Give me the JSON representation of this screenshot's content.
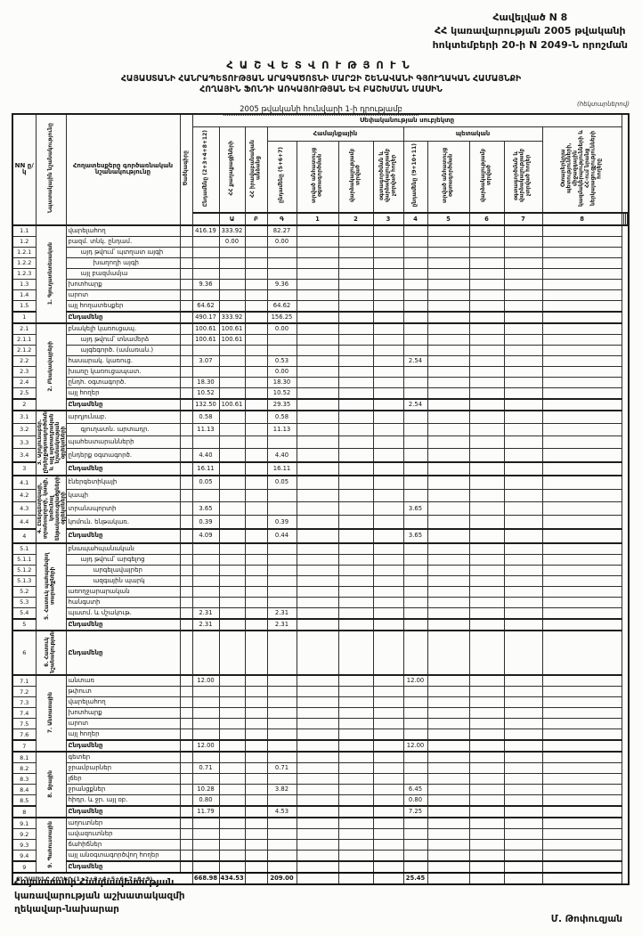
{
  "page": {
    "appendix": [
      "Հավելված N 8",
      "ՀՀ կառավարության 2005 թվականի",
      "հոկտեմբերի 20-ի N 2049-Ն որոշման"
    ],
    "title1": "ՀԱՇՎԵՏՎՈՒԹՅՈՒՆ",
    "title2": "ՀԱՅԱՍՏԱՆԻ ՀԱՆՐԱՊԵՏՈՒԹՅԱՆ ԱՐԱԳԱԾՈՏՆԻ ՄԱՐԶԻ ՇԵՆԱՎԱՆԻ ԳՅՈՒՂԱԿԱՆ ՀԱՄԱՅՆՔԻ",
    "title3": "ՀՈՂԱՅԻՆ ՖՈՆԴԻ ԱՌԿԱՅՈՒԹՅԱՆ ԵՎ ԲԱՇԽՄԱՆ ՄԱՍԻՆ",
    "title4": "2005 թվականի հունվարի 1-ի դրությամբ",
    "units_note": "(հեկտարներով)",
    "footer_lines": [
      "Հայաստանի Հանրապետության",
      "կառավարության աշխատակազմի",
      "ղեկավար-նախարար"
    ],
    "signature": "Մ. Թոփուզյան"
  },
  "table": {
    "header": {
      "nn": "NN ը/կ",
      "purpose": "Նպատակային նշանակությունը",
      "land_types": "Հողատեսքերը գործառնական նշանակությունը",
      "code": "Ծածկագիրը",
      "subject": "Սեփականության սուբյեկտը",
      "community": "Համայնքային",
      "state": "պետական",
      "c1": "Ընդամենը (2+3+4+8+12)",
      "c2": "ՀՀ քաղաքացիների",
      "c3": "ՀՀ իրավաբանական անձանց",
      "c4": "ընդամենը (5+6+7)",
      "c5": "տրված անհատույց օգտագործման",
      "c6": "վարձակալությամբ տրված",
      "c7": "օգտագործման և վարձակալությամբ չտրված հողեր",
      "c8": "ընդամենը (9+10+11)",
      "c9": "տրված անհատույց օգտագործման",
      "c10": "վարձակալությամբ տրված",
      "c11": "օգտագործման և վարձակալությամբ չտրված հողեր",
      "c12": "Օտարերկրյա պետությունների, միջազգային կազմակերպությունների և ՀՀ-ում նրանց ներկայացուցչությունների հողերը"
    },
    "col_numbers": [
      "",
      "Ա",
      "Բ",
      "Գ",
      "1",
      "2",
      "3",
      "4",
      "5",
      "6",
      "7",
      "8",
      "9",
      "10",
      "11",
      "12"
    ],
    "rows": [
      {
        "no": "1.1",
        "section": {
          "label": "1. Գյուղատնտեսական",
          "span": 9
        },
        "label": "վարելահող",
        "v": {
          "1": "416.19",
          "2": "333.92",
          "4": "82.27"
        }
      },
      {
        "no": "1.2",
        "label": "բազմ. տնկ. ընդամ.",
        "v": {
          "2": "0.00",
          "4": "0.00"
        }
      },
      {
        "no": "1.2.1",
        "indent": 1,
        "label": "այդ թվում՝ պտղատ այգի"
      },
      {
        "no": "1.2.2",
        "indent": 2,
        "label": "խաղողի այգի"
      },
      {
        "no": "1.2.3",
        "indent": 1,
        "label": "այլ բազմամյա"
      },
      {
        "no": "1.3",
        "label": "խոտհարք",
        "v": {
          "1": "9.36",
          "4": "9.36"
        }
      },
      {
        "no": "1.4",
        "label": "արոտ"
      },
      {
        "no": "1.5",
        "label": "այլ հողատեսքեր",
        "v": {
          "1": "64.62",
          "4": "64.62"
        }
      },
      {
        "no": "1",
        "total": true,
        "label": "Ընդամենը",
        "v": {
          "1": "490.17",
          "2": "333.92",
          "4": "156.25"
        }
      },
      {
        "no": "2.1",
        "section": {
          "label": "2. Բնակավայրերի",
          "span": 8
        },
        "label": "բնակելի կառուցապ.",
        "v": {
          "1": "100.61",
          "2": "100.61",
          "4": "0.00"
        }
      },
      {
        "no": "2.1.1",
        "indent": 1,
        "label": "այդ թվում՝ տնամերձ",
        "v": {
          "1": "100.61",
          "2": "100.61"
        }
      },
      {
        "no": "2.1.2",
        "indent": 1,
        "label": "այգեգործ. (ամառան.)"
      },
      {
        "no": "2.2",
        "label": "հասարակ. կառուց.",
        "v": {
          "1": "3.07",
          "4": "0.53",
          "8": "2.54"
        }
      },
      {
        "no": "2.3",
        "label": "խառը կառուցապատ.",
        "v": {
          "4": "0.00"
        }
      },
      {
        "no": "2.4",
        "label": "ընդհ. օգտագործ.",
        "v": {
          "1": "18.30",
          "4": "18.30"
        }
      },
      {
        "no": "2.5",
        "label": "այլ հողեր",
        "v": {
          "1": "10.52",
          "4": "10.52"
        }
      },
      {
        "no": "2",
        "total": true,
        "label": "Ընդամենը",
        "v": {
          "1": "132.50",
          "2": "100.61",
          "4": "29.35",
          "8": "2.54"
        }
      },
      {
        "no": "3.1",
        "section": {
          "label": "3. Արդյունաբեր. ընդերքօգտագործման և այլ արտադրական նշանակության օբյեկտների",
          "span": 5
        },
        "label": "արդյունաբ.",
        "v": {
          "1": "0.58",
          "4": "0.58"
        }
      },
      {
        "no": "3.2",
        "indent": 1,
        "label": "գյուղատն. արտադր.",
        "v": {
          "1": "11.13",
          "4": "11.13"
        }
      },
      {
        "no": "3.3",
        "label": "պահեստարանների"
      },
      {
        "no": "3.4",
        "label": "ընդերք օգտագործ.",
        "v": {
          "1": "4.40",
          "4": "4.40"
        }
      },
      {
        "no": "3",
        "total": true,
        "label": "Ընդամենը",
        "v": {
          "1": "16.11",
          "4": "16.11"
        }
      },
      {
        "no": "4.1",
        "section": {
          "label": "4. Էներգետիկայի, տրանսպորտի, կապի, կոմունալ ենթակառուցվածքների օբյեկտների",
          "span": 5
        },
        "label": "էներգետիկայի",
        "v": {
          "1": "0.05",
          "4": "0.05"
        }
      },
      {
        "no": "4.2",
        "label": "կապի"
      },
      {
        "no": "4.3",
        "label": "տրանսպորտի",
        "v": {
          "1": "3.65",
          "8": "3.65"
        }
      },
      {
        "no": "4.4",
        "label": "կոմուն. ենթակառ.",
        "v": {
          "1": "0.39",
          "4": "0.39"
        }
      },
      {
        "no": "4",
        "total": true,
        "label": "Ընդամենը",
        "v": {
          "1": "4.09",
          "4": "0.44",
          "8": "3.65"
        }
      },
      {
        "no": "5.1",
        "section": {
          "label": "5. Հատուկ պահպանվող տարածքների",
          "span": 8
        },
        "label": "բնապահպանական"
      },
      {
        "no": "5.1.1",
        "indent": 1,
        "label": "այդ թվում՝ արգելոց"
      },
      {
        "no": "5.1.2",
        "indent": 2,
        "label": "արգելավայրեր"
      },
      {
        "no": "5.1.3",
        "indent": 2,
        "label": "ազգային պարկ"
      },
      {
        "no": "5.2",
        "label": "առողջարարական"
      },
      {
        "no": "5.3",
        "label": "հանգստի"
      },
      {
        "no": "5.4",
        "label": "պատմ. և մշակութ.",
        "v": {
          "1": "2.31",
          "4": "2.31"
        }
      },
      {
        "no": "5",
        "total": true,
        "label": "Ընդամենը",
        "v": {
          "1": "2.31",
          "4": "2.31"
        }
      },
      {
        "no": "6",
        "tall": true,
        "total": true,
        "section": {
          "label": "6. Հատուկ նշանակության",
          "span": 1
        },
        "label": "Ընդամենը"
      },
      {
        "no": "7.1",
        "section": {
          "label": "7. Անտառային",
          "span": 7
        },
        "label": "անտառ",
        "v": {
          "1": "12.00",
          "8": "12.00"
        }
      },
      {
        "no": "7.2",
        "label": "թփուտ"
      },
      {
        "no": "7.3",
        "label": "վարելահող"
      },
      {
        "no": "7.4",
        "label": "խոտհարք"
      },
      {
        "no": "7.5",
        "label": "արոտ"
      },
      {
        "no": "7.6",
        "label": "այլ հողեր"
      },
      {
        "no": "7",
        "total": true,
        "label": "Ընդամենը",
        "v": {
          "1": "12.00",
          "8": "12.00"
        }
      },
      {
        "no": "8.1",
        "section": {
          "label": "8. Ջրային",
          "span": 6
        },
        "label": "գետեր"
      },
      {
        "no": "8.2",
        "label": "ջրամբարներ",
        "v": {
          "1": "0.71",
          "4": "0.71"
        }
      },
      {
        "no": "8.3",
        "label": "լճեր"
      },
      {
        "no": "8.4",
        "label": "ջրանցքներ",
        "v": {
          "1": "10.28",
          "4": "3.82",
          "8": "6.45"
        }
      },
      {
        "no": "8.5",
        "label": "հիդր. և ջր. այլ օբ.",
        "v": {
          "1": "0.80",
          "8": "0.80"
        }
      },
      {
        "no": "8",
        "total": true,
        "label": "Ընդամենը",
        "v": {
          "1": "11.79",
          "4": "4.53",
          "8": "7.25"
        }
      },
      {
        "no": "9.1",
        "section": {
          "label": "9. Պահուստային",
          "span": 5
        },
        "label": "աղուտներ"
      },
      {
        "no": "9.2",
        "label": "ավազուտներ"
      },
      {
        "no": "9.3",
        "label": "ճահիճներ"
      },
      {
        "no": "9.4",
        "label": "այլ անօգտագործվող հողեր"
      },
      {
        "no": "9",
        "total": true,
        "label": "Ընդամենը"
      },
      {
        "grand": true,
        "label": "ԸՆԴԱՄԵՆԸ ՀՈՂԵՐ (1+2+3+4+5+6+7+8+9)",
        "v": {
          "1": "668.98",
          "2": "434.53",
          "4": "209.00",
          "8": "25.45"
        }
      }
    ]
  }
}
